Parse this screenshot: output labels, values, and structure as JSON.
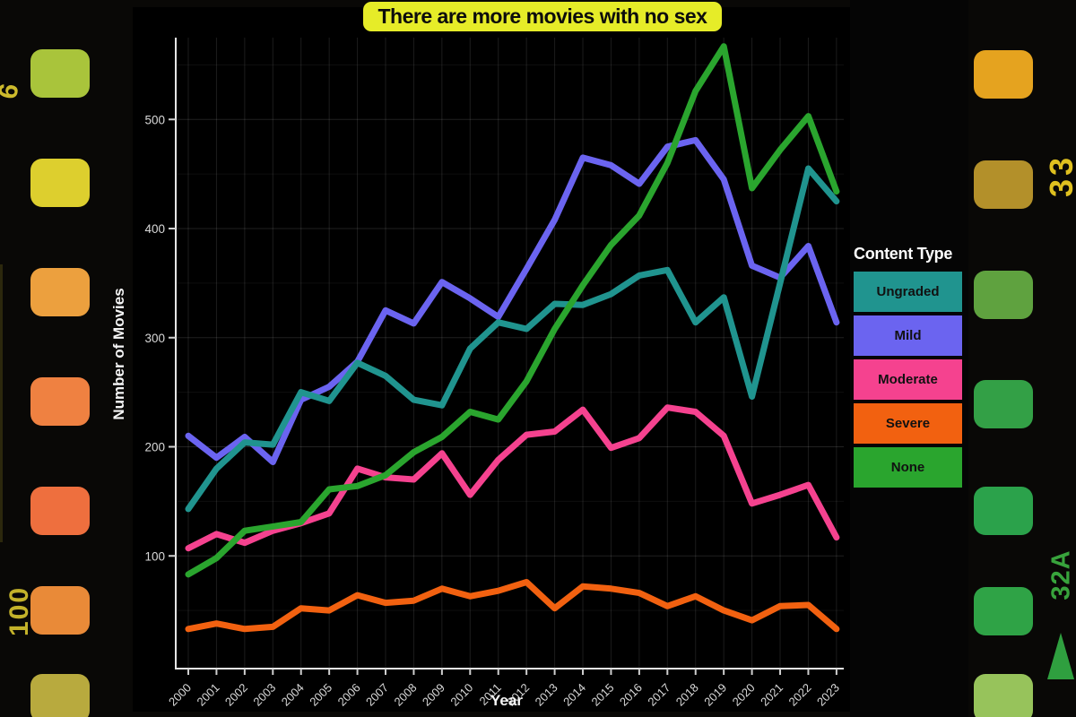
{
  "title": "There are more movies with no sex",
  "chart_data": {
    "type": "line",
    "x": [
      2000,
      2001,
      2002,
      2003,
      2004,
      2005,
      2006,
      2007,
      2008,
      2009,
      2010,
      2011,
      2012,
      2013,
      2014,
      2015,
      2016,
      2017,
      2018,
      2019,
      2020,
      2021,
      2022,
      2023
    ],
    "xlabel": "Year",
    "ylabel": "Number of Movies",
    "ylim": [
      0,
      575
    ],
    "yticks": [
      100,
      200,
      300,
      400,
      500
    ],
    "grid": "on",
    "legend_title": "Content Type",
    "legend_position": "right",
    "series": [
      {
        "name": "Ungraded",
        "color": "#20948f",
        "values": [
          143,
          180,
          204,
          202,
          250,
          242,
          277,
          265,
          243,
          238,
          290,
          314,
          308,
          331,
          330,
          340,
          357,
          362,
          314,
          337,
          246,
          350,
          455,
          425
        ]
      },
      {
        "name": "Mild",
        "color": "#6b64f0",
        "values": [
          210,
          190,
          209,
          186,
          243,
          255,
          278,
          325,
          313,
          351,
          336,
          319,
          363,
          408,
          465,
          458,
          441,
          475,
          481,
          445,
          366,
          355,
          384,
          314
        ]
      },
      {
        "name": "Moderate",
        "color": "#f5428f",
        "values": [
          107,
          120,
          112,
          123,
          130,
          139,
          180,
          172,
          170,
          194,
          156,
          188,
          211,
          214,
          234,
          199,
          208,
          236,
          232,
          210,
          148,
          156,
          165,
          117
        ]
      },
      {
        "name": "Severe",
        "color": "#f26110",
        "values": [
          33,
          38,
          33,
          35,
          52,
          50,
          64,
          57,
          59,
          70,
          63,
          68,
          76,
          52,
          72,
          70,
          66,
          54,
          63,
          50,
          41,
          54,
          55,
          33
        ]
      },
      {
        "name": "None",
        "color": "#2aa52e",
        "values": [
          83,
          98,
          123,
          127,
          131,
          161,
          164,
          174,
          195,
          209,
          232,
          225,
          260,
          308,
          348,
          385,
          412,
          460,
          526,
          567,
          437,
          472,
          503,
          434
        ]
      }
    ]
  },
  "film": {
    "left_markings": [
      "6",
      "100"
    ],
    "right_markings": [
      "33",
      "32A"
    ],
    "left_hole_colors": [
      "#a9c43b",
      "#ddcf2e",
      "#eca03e",
      "#ef8141",
      "#ee6f3e",
      "#e98a38",
      "#b8aa3e"
    ],
    "right_hole_colors": [
      "#e5a31f",
      "#b3902a",
      "#5fa23f",
      "#33a046",
      "#2ba24b",
      "#2fa346",
      "#97c35b"
    ]
  }
}
